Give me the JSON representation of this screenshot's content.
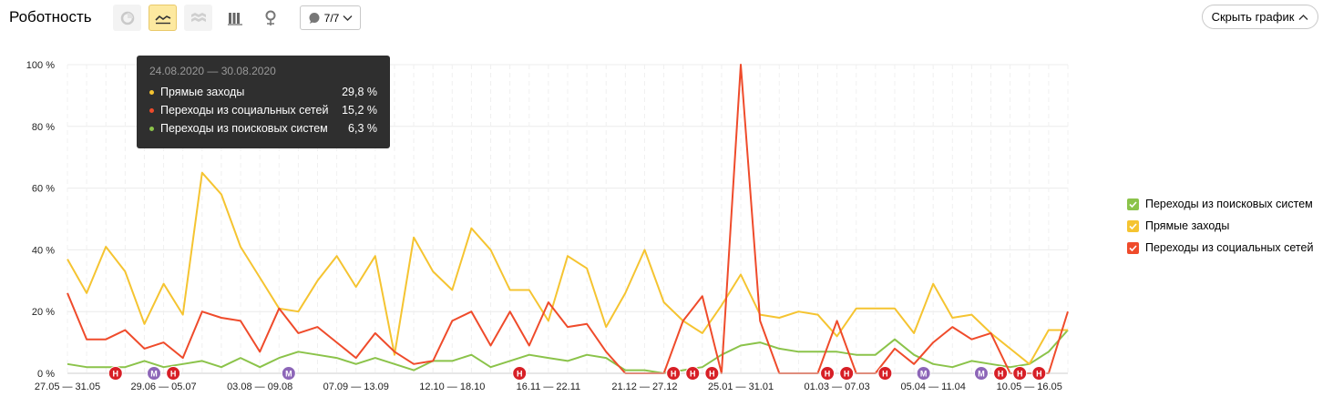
{
  "header": {
    "title": "Роботность",
    "counter_label": "7/7",
    "hide_button_label": "Скрыть график"
  },
  "toolbar": {
    "buttons": [
      {
        "icon": "pie-chart-icon",
        "state": "disabled"
      },
      {
        "icon": "line-chart-icon",
        "state": "active"
      },
      {
        "icon": "area-chart-icon",
        "state": "disabled"
      },
      {
        "icon": "bar-chart-icon",
        "state": "normal"
      },
      {
        "icon": "map-pin-icon",
        "state": "normal"
      }
    ]
  },
  "tooltip": {
    "date_range": "24.08.2020 — 30.08.2020",
    "rows": [
      {
        "name": "Прямые заходы",
        "value": "29,8 %",
        "color": "#f5c431"
      },
      {
        "name": "Переходы из социальных сетей",
        "value": "15,2 %",
        "color": "#ef4b2b"
      },
      {
        "name": "Переходы из поисковых систем",
        "value": "6,3 %",
        "color": "#8bc34a"
      }
    ]
  },
  "legend": [
    {
      "name": "Переходы из поисковых систем",
      "color": "#8bc34a"
    },
    {
      "name": "Прямые заходы",
      "color": "#f5c431"
    },
    {
      "name": "Переходы из социальных сетей",
      "color": "#ef4b2b"
    }
  ],
  "chart_data": {
    "type": "line",
    "ylim": [
      0,
      100
    ],
    "yticks": [
      "0 %",
      "20 %",
      "40 %",
      "60 %",
      "80 %",
      "100 %"
    ],
    "xtick_labels": [
      "27.05 — 31.05",
      "29.06 — 05.07",
      "03.08 — 09.08",
      "07.09 — 13.09",
      "12.10 — 18.10",
      "16.11 — 22.11",
      "21.12 — 27.12",
      "25.01 — 31.01",
      "01.03 — 07.03",
      "05.04 — 11.04",
      "10.05 — 16.05"
    ],
    "grid": true,
    "series": [
      {
        "name": "Прямые заходы",
        "color": "#f5c431",
        "values": [
          37,
          26,
          41,
          33,
          16,
          29,
          19,
          65,
          58,
          41,
          31,
          21,
          20,
          30,
          38,
          28,
          38,
          6,
          44,
          33,
          27,
          47,
          40,
          27,
          27,
          17,
          38,
          34,
          15,
          26,
          40,
          23,
          17,
          13,
          22,
          32,
          19,
          18,
          20,
          19,
          12,
          21,
          21,
          21,
          13,
          29,
          18,
          19,
          13,
          8,
          3,
          14,
          14
        ]
      },
      {
        "name": "Переходы из социальных сетей",
        "color": "#ef4b2b",
        "values": [
          26,
          11,
          11,
          14,
          8,
          10,
          5,
          20,
          18,
          17,
          7,
          21,
          13,
          15,
          10,
          5,
          13,
          7,
          3,
          4,
          17,
          20,
          9,
          20,
          9,
          23,
          15,
          16,
          7,
          0,
          0,
          0,
          17,
          25,
          0,
          100,
          17,
          0,
          0,
          0,
          17,
          0,
          0,
          8,
          3,
          10,
          15,
          11,
          13,
          0,
          0,
          0,
          20
        ]
      },
      {
        "name": "Переходы из поисковых систем",
        "color": "#8bc34a",
        "values": [
          3,
          2,
          2,
          2,
          4,
          2,
          3,
          4,
          2,
          5,
          2,
          5,
          7,
          6,
          5,
          3,
          5,
          3,
          1,
          4,
          4,
          6,
          2,
          4,
          6,
          5,
          4,
          6,
          5,
          1,
          1,
          0,
          1,
          2,
          6,
          9,
          10,
          8,
          7,
          7,
          7,
          6,
          6,
          11,
          6,
          3,
          2,
          4,
          3,
          2,
          3,
          7,
          14
        ]
      }
    ],
    "annotations": [
      {
        "label": "Н",
        "index": 2,
        "color": "#d71f26"
      },
      {
        "label": "М",
        "index": 4,
        "color": "#8d66b8"
      },
      {
        "label": "Н",
        "index": 5,
        "color": "#d71f26"
      },
      {
        "label": "М",
        "index": 11,
        "color": "#8d66b8"
      },
      {
        "label": "Н",
        "index": 23,
        "color": "#d71f26"
      },
      {
        "label": "Н",
        "index": 31,
        "color": "#d71f26"
      },
      {
        "label": "Н",
        "index": 32,
        "color": "#d71f26"
      },
      {
        "label": "Н",
        "index": 33,
        "color": "#d71f26"
      },
      {
        "label": "Н",
        "index": 39,
        "color": "#d71f26"
      },
      {
        "label": "Н",
        "index": 40,
        "color": "#d71f26"
      },
      {
        "label": "Н",
        "index": 42,
        "color": "#d71f26"
      },
      {
        "label": "М",
        "index": 44,
        "color": "#8d66b8"
      },
      {
        "label": "М",
        "index": 47,
        "color": "#8d66b8"
      },
      {
        "label": "Н",
        "index": 48,
        "color": "#d71f26"
      },
      {
        "label": "Н",
        "index": 49,
        "color": "#d71f26"
      },
      {
        "label": "Н",
        "index": 50,
        "color": "#d71f26"
      }
    ]
  }
}
